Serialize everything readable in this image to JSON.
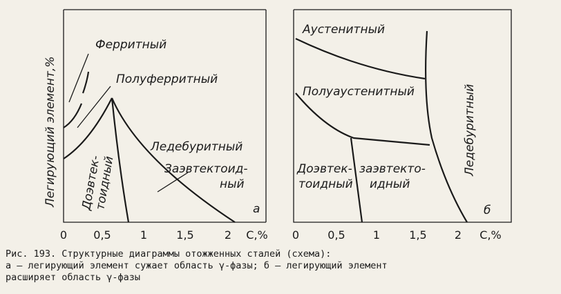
{
  "y_axis_label": "Легирующий элемент,%",
  "panels": [
    {
      "labels": [
        "Ферритный",
        "Полуферритный",
        "Ледебуритный",
        "Заэвтектоид-",
        "ный",
        "Доэвтек-",
        "тоидный"
      ],
      "letter": "а",
      "ticks": [
        "0",
        "0,5",
        "1",
        "1,5",
        "2",
        "С,%"
      ]
    },
    {
      "labels": [
        "Аустенитный",
        "Полуаустенитный",
        "Доэвтек-",
        "тоидный",
        "заэвтекто-",
        "идный",
        "Ледебуритный"
      ],
      "letter": "б",
      "ticks": [
        "0",
        "0,5",
        "1",
        "1,5",
        "2",
        "С,%"
      ]
    }
  ],
  "caption": [
    "Рис. 193. Структурные диаграммы отожженных сталей (схема):",
    "а — легирующий элемент сужает область γ-фазы; б — легирующий элемент",
    "расширяет область γ-фазы"
  ]
}
